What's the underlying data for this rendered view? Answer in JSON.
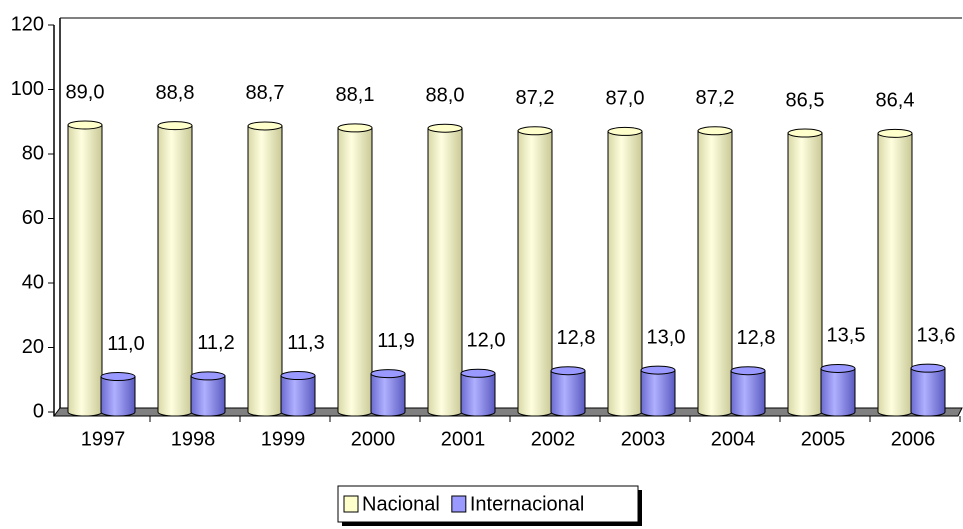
{
  "chart_data": {
    "type": "bar",
    "categories": [
      "1997",
      "1998",
      "1999",
      "2000",
      "2001",
      "2002",
      "2003",
      "2004",
      "2005",
      "2006"
    ],
    "series": [
      {
        "name": "Nacional",
        "color": "#ffffcc",
        "values": [
          89.0,
          88.8,
          88.7,
          88.1,
          88.0,
          87.2,
          87.0,
          87.2,
          86.5,
          86.4
        ],
        "value_labels": [
          "89,0",
          "88,8",
          "88,7",
          "88,1",
          "88,0",
          "87,2",
          "87,0",
          "87,2",
          "86,5",
          "86,4"
        ]
      },
      {
        "name": "Internacional",
        "color": "#9999ff",
        "values": [
          11.0,
          11.2,
          11.3,
          11.9,
          12.0,
          12.8,
          13.0,
          12.8,
          13.5,
          13.6
        ],
        "value_labels": [
          "11,0",
          "11,2",
          "11,3",
          "11,9",
          "12,0",
          "12,8",
          "13,0",
          "12,8",
          "13,5",
          "13,6"
        ]
      }
    ],
    "ylim": [
      0,
      120
    ],
    "yticks": [
      0,
      20,
      40,
      60,
      80,
      100,
      120
    ],
    "grid": false,
    "legend": "bottom"
  }
}
